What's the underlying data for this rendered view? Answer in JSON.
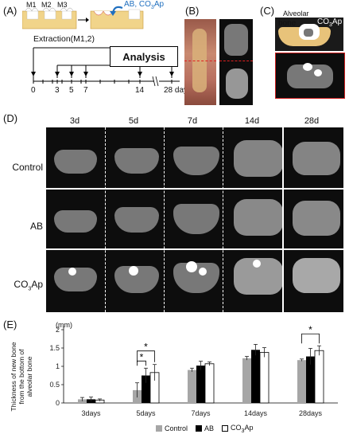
{
  "panelA": {
    "label": "(A)",
    "teeth": [
      "M1",
      "M2",
      "M3"
    ],
    "implant_label": "AB, CO",
    "implant_sub": "3",
    "implant_suffix": "Ap",
    "extraction": "Extraction(M1,2)",
    "analysis": "Analysis",
    "ticks": [
      "0",
      "3",
      "5",
      "7",
      "14",
      "28 days"
    ]
  },
  "panelB": {
    "label": "(B)"
  },
  "panelC": {
    "label": "(C)",
    "tag1": "Alveolar",
    "tag2": "bone",
    "tag3": "CO",
    "tag3_sub": "3",
    "tag3_suffix": "Ap"
  },
  "panelD": {
    "label": "(D)",
    "columns": [
      "3d",
      "5d",
      "7d",
      "14d",
      "28d"
    ],
    "rows": [
      "Control",
      "AB",
      "CO"
    ],
    "row3_sub": "3",
    "row3_suffix": "Ap"
  },
  "panelE": {
    "label": "(E)",
    "unit": "(mm)",
    "ylabel_lines": [
      "Thickness of new bone",
      "from the bottom of",
      "alveolar bone"
    ],
    "significance": [
      "*",
      "*",
      "*"
    ],
    "legend": [
      "Control",
      "AB",
      "CO"
    ],
    "legend3_sub": "3",
    "legend3_suffix": "Ap"
  },
  "chart_data": {
    "type": "bar",
    "categories": [
      "3days",
      "5days",
      "7days",
      "14days",
      "28days"
    ],
    "series": [
      {
        "name": "Control",
        "color": "#a6a6a6",
        "values": [
          0.1,
          0.35,
          0.9,
          1.22,
          1.17
        ],
        "errors": [
          0.05,
          0.2,
          0.05,
          0.05,
          0.03
        ]
      },
      {
        "name": "AB",
        "color": "#000000",
        "values": [
          0.1,
          0.75,
          1.02,
          1.45,
          1.27
        ],
        "errors": [
          0.06,
          0.2,
          0.12,
          0.15,
          0.22
        ]
      },
      {
        "name": "CO3Ap",
        "color": "#ffffff",
        "values": [
          0.08,
          0.83,
          1.07,
          1.38,
          1.43
        ],
        "errors": [
          0.03,
          0.22,
          0.05,
          0.13,
          0.13
        ]
      }
    ],
    "yticks": [
      "0",
      "0.5",
      "1",
      "1.5",
      "2"
    ],
    "ylim": [
      0,
      2
    ],
    "grid": false
  }
}
